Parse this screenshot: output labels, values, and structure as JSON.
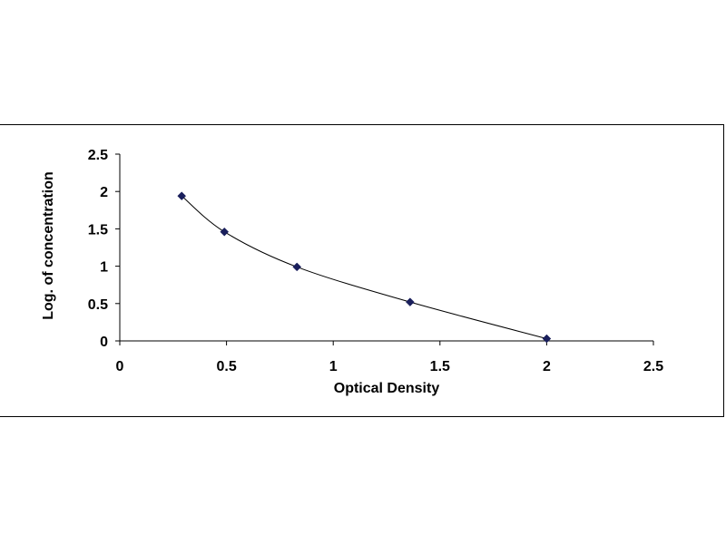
{
  "chart_data": {
    "type": "scatter",
    "title": "",
    "xlabel": "Optical Density",
    "ylabel": "Log. of concentration",
    "xlim": [
      0,
      2.5
    ],
    "ylim": [
      0,
      2.5
    ],
    "x_ticks": [
      "0",
      "0.5",
      "1",
      "1.5",
      "2",
      "2.5"
    ],
    "y_ticks": [
      "0",
      "0.5",
      "1",
      "1.5",
      "2",
      "2.5"
    ],
    "grid": false,
    "legend": "none",
    "trendline": "smooth curve through points",
    "series": [
      {
        "points": [
          {
            "x": 0.29,
            "y": 1.94
          },
          {
            "x": 0.49,
            "y": 1.46
          },
          {
            "x": 0.83,
            "y": 0.99
          },
          {
            "x": 1.36,
            "y": 0.52
          },
          {
            "x": 2.0,
            "y": 0.03
          }
        ],
        "marker": "diamond",
        "color": "#1a1f5c"
      }
    ]
  }
}
